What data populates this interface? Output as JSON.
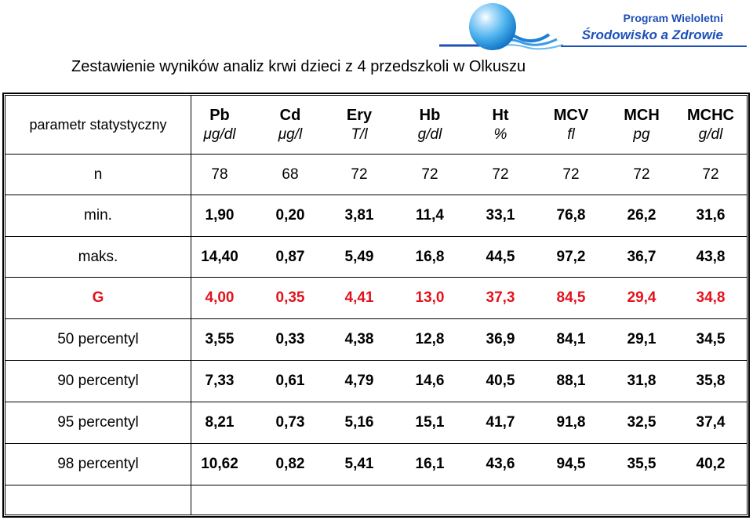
{
  "header": {
    "program_line1": "Program Wieloletni",
    "program_line2": "Środowisko a Zdrowie",
    "logo_icon": "globe-waves-icon",
    "accent_color": "#1d4fb8"
  },
  "title": "Zestawienie wyników analiz krwi dzieci z 4 przedszkoli w Olkuszu",
  "table": {
    "param_header": "parametr statystyczny",
    "columns": [
      {
        "name": "Pb",
        "unit": "μg/dl"
      },
      {
        "name": "Cd",
        "unit": "μg/l"
      },
      {
        "name": "Ery",
        "unit": "T/l"
      },
      {
        "name": "Hb",
        "unit": "g/dl"
      },
      {
        "name": "Ht",
        "unit": "%"
      },
      {
        "name": "MCV",
        "unit": "fl"
      },
      {
        "name": "MCH",
        "unit": "pg"
      },
      {
        "name": "MCHC",
        "unit": "g/dl"
      }
    ],
    "rows": [
      {
        "label": "n",
        "values": [
          "78",
          "68",
          "72",
          "72",
          "72",
          "72",
          "72",
          "72"
        ]
      },
      {
        "label": "min.",
        "values": [
          "1,90",
          "0,20",
          "3,81",
          "11,4",
          "33,1",
          "76,8",
          "26,2",
          "31,6"
        ]
      },
      {
        "label": "maks.",
        "values": [
          "14,40",
          "0,87",
          "5,49",
          "16,8",
          "44,5",
          "97,2",
          "36,7",
          "43,8"
        ]
      },
      {
        "label": "G",
        "values": [
          "4,00",
          "0,35",
          "4,41",
          "13,0",
          "37,3",
          "84,5",
          "29,4",
          "34,8"
        ],
        "color": "#e3121c"
      },
      {
        "label": "50 percentyl",
        "values": [
          "3,55",
          "0,33",
          "4,38",
          "12,8",
          "36,9",
          "84,1",
          "29,1",
          "34,5"
        ]
      },
      {
        "label": "90 percentyl",
        "values": [
          "7,33",
          "0,61",
          "4,79",
          "14,6",
          "40,5",
          "88,1",
          "31,8",
          "35,8"
        ]
      },
      {
        "label": "95 percentyl",
        "values": [
          "8,21",
          "0,73",
          "5,16",
          "15,1",
          "41,7",
          "91,8",
          "32,5",
          "37,4"
        ]
      },
      {
        "label": "98 percentyl",
        "values": [
          "10,62",
          "0,82",
          "5,41",
          "16,1",
          "43,6",
          "94,5",
          "35,5",
          "40,2"
        ]
      }
    ]
  }
}
